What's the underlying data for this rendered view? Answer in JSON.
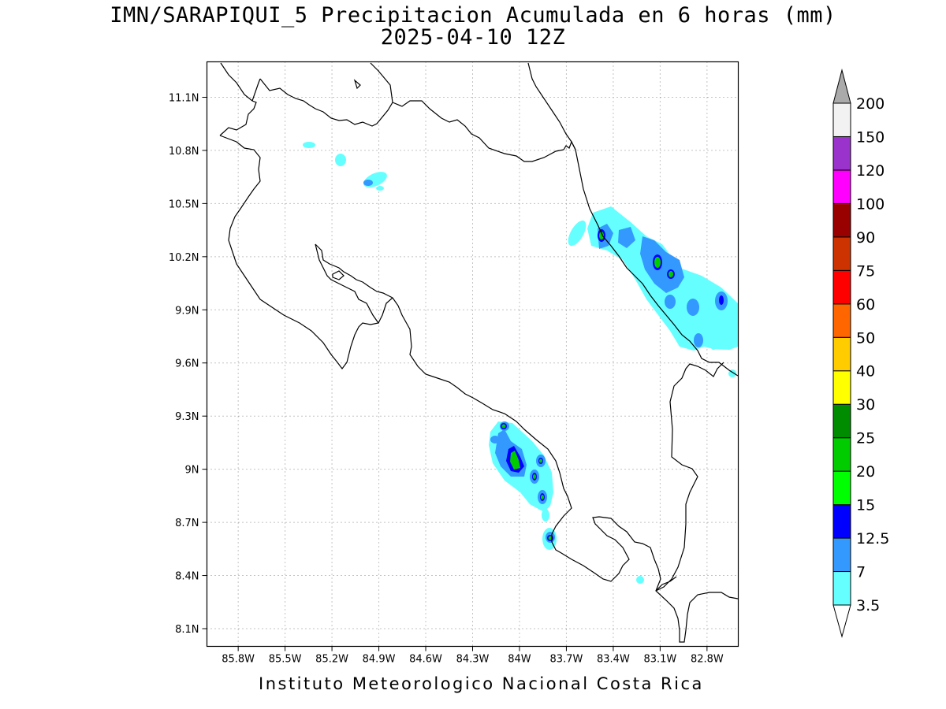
{
  "title": {
    "line1": "IMN/SARAPIQUI_5 Precipitacion Acumulada en 6 horas (mm)",
    "line2": "2025-04-10 12Z"
  },
  "footer": "Instituto Meteorologico Nacional Costa Rica",
  "map": {
    "lon_range": [
      -86.0,
      -82.6
    ],
    "lat_range": [
      8.0,
      11.3
    ],
    "lon_ticks": [
      {
        "value": -85.8,
        "label": "85.8W"
      },
      {
        "value": -85.5,
        "label": "85.5W"
      },
      {
        "value": -85.2,
        "label": "85.2W"
      },
      {
        "value": -84.9,
        "label": "84.9W"
      },
      {
        "value": -84.6,
        "label": "84.6W"
      },
      {
        "value": -84.3,
        "label": "84.3W"
      },
      {
        "value": -84.0,
        "label": "84W"
      },
      {
        "value": -83.7,
        "label": "83.7W"
      },
      {
        "value": -83.4,
        "label": "83.4W"
      },
      {
        "value": -83.1,
        "label": "83.1W"
      },
      {
        "value": -82.8,
        "label": "82.8W"
      }
    ],
    "lat_ticks": [
      {
        "value": 11.1,
        "label": "11.1N"
      },
      {
        "value": 10.8,
        "label": "10.8N"
      },
      {
        "value": 10.5,
        "label": "10.5N"
      },
      {
        "value": 10.2,
        "label": "10.2N"
      },
      {
        "value": 9.9,
        "label": "9.9N"
      },
      {
        "value": 9.6,
        "label": "9.6N"
      },
      {
        "value": 9.3,
        "label": "9.3N"
      },
      {
        "value": 9.0,
        "label": "9N"
      },
      {
        "value": 8.7,
        "label": "8.7N"
      },
      {
        "value": 8.4,
        "label": "8.4N"
      },
      {
        "value": 8.1,
        "label": "8.1N"
      }
    ],
    "grid": true
  },
  "legend": {
    "levels": [
      "3.5",
      "7",
      "12.5",
      "15",
      "20",
      "25",
      "30",
      "40",
      "50",
      "60",
      "75",
      "90",
      "100",
      "120",
      "150",
      "200"
    ],
    "colors": [
      "#66ffff",
      "#3399ff",
      "#0000ff",
      "#00ff00",
      "#00cc00",
      "#008c00",
      "#ffff00",
      "#ffcc00",
      "#ff6600",
      "#ff0000",
      "#cc3300",
      "#990000",
      "#ff00ff",
      "#9933cc",
      "#f2f2f2",
      "#aaaaaa"
    ],
    "below_color": "#ffffff"
  }
}
